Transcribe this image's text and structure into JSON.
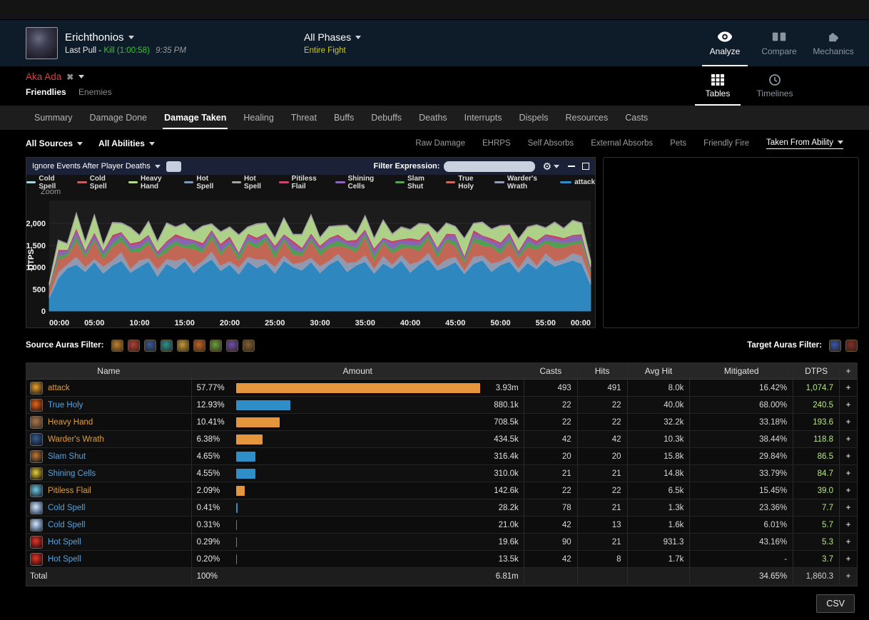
{
  "header": {
    "boss_name": "Erichthonios",
    "pull_label": "Last Pull -",
    "kill_label": "Kill (1:00:58)",
    "time_label": "9:35 PM",
    "phase_label": "All Phases",
    "phase_sub": "Entire Fight",
    "mode_tabs": [
      {
        "label": "Analyze",
        "icon": "eye-icon",
        "active": true
      },
      {
        "label": "Compare",
        "icon": "compare-icon",
        "active": false
      },
      {
        "label": "Mechanics",
        "icon": "puzzle-icon",
        "active": false
      }
    ]
  },
  "subheader": {
    "target_name": "Aka Ada",
    "friendlies_label": "Friendlies",
    "enemies_label": "Enemies",
    "view_tabs": [
      {
        "label": "Tables",
        "icon": "grid-icon",
        "active": true
      },
      {
        "label": "Timelines",
        "icon": "clock-icon",
        "active": false
      }
    ]
  },
  "nav_tabs": [
    {
      "label": "Summary",
      "active": false
    },
    {
      "label": "Damage Done",
      "active": false
    },
    {
      "label": "Damage Taken",
      "active": true
    },
    {
      "label": "Healing",
      "active": false
    },
    {
      "label": "Threat",
      "active": false
    },
    {
      "label": "Buffs",
      "active": false
    },
    {
      "label": "Debuffs",
      "active": false
    },
    {
      "label": "Deaths",
      "active": false
    },
    {
      "label": "Interrupts",
      "active": false
    },
    {
      "label": "Dispels",
      "active": false
    },
    {
      "label": "Resources",
      "active": false
    },
    {
      "label": "Casts",
      "active": false
    }
  ],
  "filter_bar": {
    "sources_label": "All Sources",
    "abilities_label": "All Abilities",
    "links": [
      {
        "label": "Raw Damage",
        "active": false
      },
      {
        "label": "EHRPS",
        "active": false
      },
      {
        "label": "Self Absorbs",
        "active": false
      },
      {
        "label": "External Absorbs",
        "active": false
      },
      {
        "label": "Pets",
        "active": false
      },
      {
        "label": "Friendly Fire",
        "active": false
      },
      {
        "label": "Taken From Ability",
        "active": true
      }
    ]
  },
  "graph_panel": {
    "ignore_label": "Ignore Events After Player Deaths",
    "filter_expression_label": "Filter Expression:",
    "filter_input_value": "",
    "zoom_label": "Zoom"
  },
  "chart_data": {
    "type": "area",
    "stacked": true,
    "title": "",
    "ylabel": "DTPS",
    "ylim": [
      0,
      2400
    ],
    "grid": true,
    "legend_position": "top",
    "y_ticks": [
      {
        "value": 0,
        "label": "0"
      },
      {
        "value": 500,
        "label": "500"
      },
      {
        "value": 1000,
        "label": "1,000"
      },
      {
        "value": 1500,
        "label": "1,500"
      },
      {
        "value": 2000,
        "label": "2,000"
      }
    ],
    "x_ticks": [
      "00:00",
      "05:00",
      "10:00",
      "15:00",
      "20:00",
      "25:00",
      "30:00",
      "35:00",
      "40:00",
      "45:00",
      "50:00",
      "55:00",
      "00:00"
    ],
    "stack_order": [
      10,
      9,
      8,
      7,
      6,
      5,
      2,
      0,
      1,
      3,
      4
    ],
    "series": [
      {
        "name": "Cold Spell",
        "color": "#a9d6dd",
        "values": [
          8,
          8,
          8,
          8,
          8,
          8,
          8,
          8,
          8,
          8,
          8,
          8,
          8,
          8,
          8,
          8,
          8,
          8,
          8,
          8,
          8,
          8,
          8,
          8,
          8,
          8,
          8,
          8,
          8,
          8,
          8,
          8,
          8,
          8,
          8,
          8,
          8,
          8,
          8,
          8,
          8,
          8,
          8,
          8,
          8,
          8,
          8,
          8,
          8,
          8,
          8,
          8,
          8,
          8,
          8,
          8,
          8,
          8,
          8,
          8,
          8
        ]
      },
      {
        "name": "Cold Spell",
        "color": "#c06060",
        "values": [
          6,
          6,
          6,
          6,
          6,
          6,
          6,
          6,
          6,
          6,
          6,
          6,
          6,
          6,
          6,
          6,
          6,
          6,
          6,
          6,
          6,
          6,
          6,
          6,
          6,
          6,
          6,
          6,
          6,
          6,
          6,
          6,
          6,
          6,
          6,
          6,
          6,
          6,
          6,
          6,
          6,
          6,
          6,
          6,
          6,
          6,
          6,
          6,
          6,
          6,
          6,
          6,
          6,
          6,
          6,
          6,
          6,
          6,
          6,
          6,
          6
        ]
      },
      {
        "name": "Heavy Hand",
        "color": "#b5dc8d",
        "values": [
          60,
          200,
          120,
          320,
          160,
          380,
          100,
          260,
          180,
          340,
          120,
          280,
          200,
          390,
          140,
          300,
          160,
          360,
          110,
          250,
          190,
          370,
          130,
          290,
          210,
          150,
          350,
          120,
          280,
          400,
          160,
          240,
          180,
          330,
          110,
          290,
          200,
          380,
          140,
          260,
          170,
          350,
          120,
          300,
          220,
          150,
          370,
          130,
          280,
          190,
          360,
          140,
          250,
          180,
          340,
          120,
          290,
          200,
          310,
          230,
          120
        ]
      },
      {
        "name": "Hot Spell",
        "color": "#8299b5",
        "values": [
          5,
          5,
          5,
          5,
          5,
          5,
          5,
          5,
          5,
          5,
          5,
          5,
          5,
          5,
          5,
          5,
          5,
          5,
          5,
          5,
          5,
          5,
          5,
          5,
          5,
          5,
          5,
          5,
          5,
          5,
          5,
          5,
          5,
          5,
          5,
          5,
          5,
          5,
          5,
          5,
          5,
          5,
          5,
          5,
          5,
          5,
          5,
          5,
          5,
          5,
          5,
          5,
          5,
          5,
          5,
          5,
          5,
          5,
          5,
          5,
          5
        ]
      },
      {
        "name": "Hot Spell",
        "color": "#a3a3a3",
        "values": [
          4,
          4,
          4,
          4,
          4,
          4,
          4,
          4,
          4,
          4,
          4,
          4,
          4,
          4,
          4,
          4,
          4,
          4,
          4,
          4,
          4,
          4,
          4,
          4,
          4,
          4,
          4,
          4,
          4,
          4,
          4,
          4,
          4,
          4,
          4,
          4,
          4,
          4,
          4,
          4,
          4,
          4,
          4,
          4,
          4,
          4,
          4,
          4,
          4,
          4,
          4,
          4,
          4,
          4,
          4,
          4,
          4,
          4,
          4,
          4,
          4
        ]
      },
      {
        "name": "Pitiless Flail",
        "color": "#c74a6b",
        "values": [
          10,
          40,
          20,
          60,
          30,
          50,
          20,
          70,
          30,
          40,
          60,
          20,
          50,
          30,
          70,
          40,
          20,
          60,
          30,
          50,
          70,
          20,
          40,
          60,
          30,
          50,
          20,
          70,
          40,
          30,
          60,
          20,
          50,
          40,
          70,
          30,
          60,
          20,
          50,
          30,
          70,
          40,
          60,
          20,
          50,
          30,
          40,
          70,
          20,
          60,
          30,
          50,
          40,
          20,
          70,
          30,
          60,
          50,
          20,
          40,
          30
        ]
      },
      {
        "name": "Shining Cells",
        "color": "#8f68bb",
        "values": [
          50,
          100,
          70,
          130,
          60,
          110,
          80,
          140,
          60,
          100,
          80,
          120,
          50,
          110,
          90,
          140,
          60,
          100,
          70,
          130,
          80,
          50,
          120,
          90,
          60,
          110,
          80,
          140,
          70,
          100,
          50,
          130,
          90,
          60,
          120,
          80,
          110,
          60,
          140,
          70,
          100,
          90,
          50,
          120,
          80,
          130,
          60,
          110,
          90,
          70,
          130,
          100,
          60,
          120,
          50,
          110,
          80,
          70,
          140,
          90,
          60
        ]
      },
      {
        "name": "Slam Shut",
        "color": "#55a457",
        "values": [
          40,
          90,
          60,
          120,
          80,
          50,
          110,
          70,
          130,
          60,
          100,
          80,
          50,
          120,
          90,
          60,
          130,
          70,
          110,
          80,
          50,
          120,
          60,
          100,
          90,
          140,
          60,
          110,
          80,
          50,
          120,
          70,
          130,
          60,
          100,
          80,
          120,
          50,
          90,
          110,
          60,
          130,
          80,
          100,
          50,
          120,
          70,
          90,
          130,
          60,
          110,
          80,
          50,
          120,
          90,
          70,
          130,
          100,
          60,
          90,
          50
        ]
      },
      {
        "name": "True Holy",
        "color": "#cb6b5a",
        "values": [
          120,
          280,
          180,
          350,
          220,
          400,
          160,
          300,
          240,
          380,
          190,
          320,
          260,
          150,
          360,
          230,
          410,
          180,
          290,
          240,
          370,
          160,
          310,
          250,
          420,
          190,
          330,
          210,
          150,
          380,
          240,
          300,
          170,
          350,
          220,
          400,
          180,
          290,
          260,
          150,
          370,
          230,
          320,
          190,
          410,
          240,
          170,
          340,
          220,
          380,
          160,
          300,
          250,
          190,
          360,
          230,
          310,
          270,
          200,
          280,
          150
        ]
      },
      {
        "name": "Warder's Wrath",
        "color": "#98a0b8",
        "values": [
          60,
          140,
          90,
          180,
          110,
          70,
          160,
          120,
          200,
          90,
          150,
          80,
          170,
          110,
          190,
          70,
          140,
          100,
          180,
          120,
          80,
          160,
          110,
          200,
          90,
          150,
          120,
          70,
          180,
          100,
          160,
          90,
          140,
          200,
          80,
          150,
          110,
          170,
          90,
          130,
          190,
          80,
          150,
          100,
          170,
          120,
          80,
          160,
          110,
          190,
          90,
          140,
          100,
          170,
          80,
          150,
          120,
          90,
          160,
          180,
          120
        ]
      },
      {
        "name": "attack",
        "color": "#2f8ec8",
        "values": [
          300,
          750,
          980,
          1060,
          900,
          1120,
          860,
          1040,
          1150,
          880,
          1010,
          1130,
          790,
          1080,
          960,
          1140,
          870,
          1050,
          1180,
          920,
          1060,
          840,
          1130,
          980,
          1090,
          860,
          1150,
          1010,
          930,
          1120,
          870,
          1060,
          1170,
          900,
          1040,
          1130,
          860,
          1090,
          970,
          1150,
          880,
          1060,
          1180,
          930,
          1010,
          1120,
          850,
          1080,
          1160,
          900,
          1050,
          1130,
          880,
          1100,
          960,
          1170,
          1020,
          1090,
          1160,
          1080,
          600
        ]
      }
    ]
  },
  "aura_filters": {
    "source_label": "Source Auras Filter:",
    "source_icons": [
      "#c08030",
      "#b04038",
      "#38589c",
      "#2e9090",
      "#c09838",
      "#c06428",
      "#68a040",
      "#7050a8",
      "#806038"
    ],
    "target_label": "Target Auras Filter:",
    "target_icons": [
      "#3858a8",
      "#803028"
    ]
  },
  "table": {
    "columns": [
      "Name",
      "Amount",
      "Casts",
      "Hits",
      "Avg Hit",
      "Mitigated",
      "DTPS",
      "+"
    ],
    "plus_label": "+",
    "rows": [
      {
        "name": "attack",
        "type": "physical",
        "icon": "attack-ability-icon",
        "icon_colors": [
          "#3a2a10",
          "#e8a030"
        ],
        "pct": 57.77,
        "pct_label": "57.77%",
        "amount": "3.93m",
        "casts": "493",
        "hits": "491",
        "avg_hit": "8.0k",
        "mitigated": "16.42%",
        "dtps": "1,074.7"
      },
      {
        "name": "True Holy",
        "type": "magic",
        "icon": "true-holy-ability-icon",
        "icon_colors": [
          "#401808",
          "#e06820"
        ],
        "pct": 12.93,
        "pct_label": "12.93%",
        "amount": "880.1k",
        "casts": "22",
        "hits": "22",
        "avg_hit": "40.0k",
        "mitigated": "68.00%",
        "dtps": "240.5"
      },
      {
        "name": "Heavy Hand",
        "type": "physical",
        "icon": "heavy-hand-ability-icon",
        "icon_colors": [
          "#4a3420",
          "#a87850"
        ],
        "pct": 10.41,
        "pct_label": "10.41%",
        "amount": "708.5k",
        "casts": "22",
        "hits": "22",
        "avg_hit": "32.2k",
        "mitigated": "33.18%",
        "dtps": "193.6"
      },
      {
        "name": "Warder's Wrath",
        "type": "physical",
        "icon": "warders-wrath-ability-icon",
        "icon_colors": [
          "#101c30",
          "#3a5a8c"
        ],
        "pct": 6.38,
        "pct_label": "6.38%",
        "amount": "434.5k",
        "casts": "42",
        "hits": "42",
        "avg_hit": "10.3k",
        "mitigated": "38.44%",
        "dtps": "118.8"
      },
      {
        "name": "Slam Shut",
        "type": "magic",
        "icon": "slam-shut-ability-icon",
        "icon_colors": [
          "#1a1a1e",
          "#c87830"
        ],
        "pct": 4.65,
        "pct_label": "4.65%",
        "amount": "316.4k",
        "casts": "20",
        "hits": "20",
        "avg_hit": "15.8k",
        "mitigated": "29.84%",
        "dtps": "86.5"
      },
      {
        "name": "Shining Cells",
        "type": "magic",
        "icon": "shining-cells-ability-icon",
        "icon_colors": [
          "#2a2408",
          "#e8d040"
        ],
        "pct": 4.55,
        "pct_label": "4.55%",
        "amount": "310.0k",
        "casts": "21",
        "hits": "21",
        "avg_hit": "14.8k",
        "mitigated": "33.79%",
        "dtps": "84.7"
      },
      {
        "name": "Pitiless Flail",
        "type": "physical",
        "icon": "pitiless-flail-ability-icon",
        "icon_colors": [
          "#18303e",
          "#70c8e0"
        ],
        "pct": 2.09,
        "pct_label": "2.09%",
        "amount": "142.6k",
        "casts": "22",
        "hits": "22",
        "avg_hit": "6.5k",
        "mitigated": "15.45%",
        "dtps": "39.0"
      },
      {
        "name": "Cold Spell",
        "type": "magic",
        "icon": "cold-spell-ability-icon",
        "icon_colors": [
          "#304a6a",
          "#d8e8f8"
        ],
        "pct": 0.41,
        "pct_label": "0.41%",
        "amount": "28.2k",
        "casts": "78",
        "hits": "21",
        "avg_hit": "1.3k",
        "mitigated": "23.36%",
        "dtps": "7.7"
      },
      {
        "name": "Cold Spell",
        "type": "magic",
        "icon": "cold-spell-ability-icon",
        "icon_colors": [
          "#304a6a",
          "#d8e8f8"
        ],
        "pct": 0.31,
        "pct_label": "0.31%",
        "amount": "21.0k",
        "casts": "42",
        "hits": "13",
        "avg_hit": "1.6k",
        "mitigated": "6.01%",
        "dtps": "5.7"
      },
      {
        "name": "Hot Spell",
        "type": "magic",
        "icon": "hot-spell-ability-icon",
        "icon_colors": [
          "#3a0a0a",
          "#e03828"
        ],
        "pct": 0.29,
        "pct_label": "0.29%",
        "amount": "19.6k",
        "casts": "90",
        "hits": "21",
        "avg_hit": "931.3",
        "mitigated": "43.16%",
        "dtps": "5.3"
      },
      {
        "name": "Hot Spell",
        "type": "magic",
        "icon": "hot-spell-ability-icon",
        "icon_colors": [
          "#3a0a0a",
          "#e03828"
        ],
        "pct": 0.2,
        "pct_label": "0.20%",
        "amount": "13.5k",
        "casts": "42",
        "hits": "8",
        "avg_hit": "1.7k",
        "mitigated": "-",
        "dtps": "3.7"
      }
    ],
    "total": {
      "name": "Total",
      "pct_label": "100%",
      "amount": "6.81m",
      "casts": "",
      "hits": "",
      "avg_hit": "",
      "mitigated": "34.65%",
      "dtps": "1,860.3"
    }
  },
  "csv_label": "CSV"
}
